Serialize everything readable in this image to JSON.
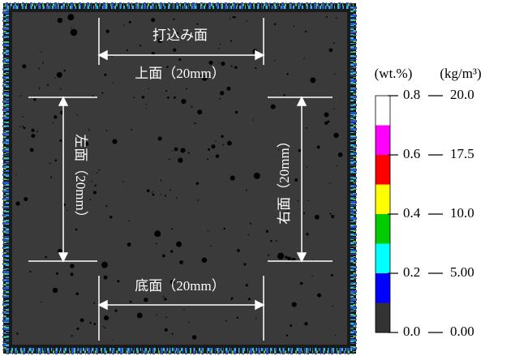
{
  "specimen": {
    "top_face": "打込み面",
    "top": "上面（20mm）",
    "left": "左面（20mm）",
    "right": "右面（20mm）",
    "bottom": "底面（20mm）"
  },
  "colorbar": {
    "unit_left": "(wt.%)",
    "unit_right": "(kg/m³)",
    "colors": [
      "#ffffff",
      "#ff00ff",
      "#ff0000",
      "#ffff00",
      "#00cc00",
      "#00ffff",
      "#0000ff",
      "#333333"
    ],
    "ticks": [
      {
        "left": "0.8",
        "right": "20.0"
      },
      {
        "left": "0.6",
        "right": "17.5"
      },
      {
        "left": "0.4",
        "right": "10.0"
      },
      {
        "left": "0.2",
        "right": "5.00"
      },
      {
        "left": "0.0",
        "right": "0.00"
      }
    ]
  }
}
